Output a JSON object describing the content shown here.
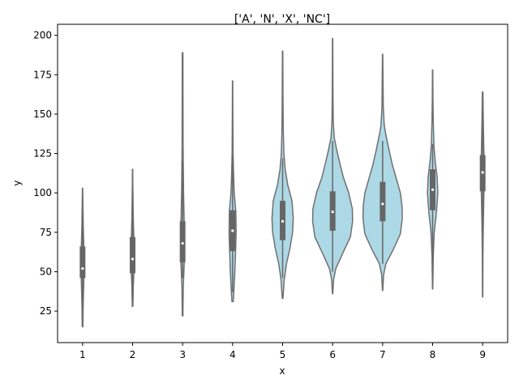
{
  "chart_data": {
    "type": "violin",
    "title": "['A', 'N', 'X', 'NC']",
    "xlabel": "x",
    "ylabel": "y",
    "categories": [
      "1",
      "2",
      "3",
      "4",
      "5",
      "6",
      "7",
      "8",
      "9"
    ],
    "ylim": [
      5,
      207
    ],
    "yticks": [
      25,
      50,
      75,
      100,
      125,
      150,
      175,
      200
    ],
    "colors": {
      "fill": "#add8e6",
      "line": "#707070",
      "box": "#666666",
      "median": "#ffffff",
      "axis": "#000000"
    },
    "violins": [
      {
        "x": "1",
        "min": 15,
        "max": 103,
        "q1": 46,
        "median": 52,
        "q3": 66,
        "whisker_low": 28,
        "whisker_high": 87,
        "profile": [
          [
            15,
            0.01
          ],
          [
            30,
            0.02
          ],
          [
            45,
            0.04
          ],
          [
            55,
            0.05
          ],
          [
            65,
            0.04
          ],
          [
            80,
            0.02
          ],
          [
            95,
            0.01
          ],
          [
            103,
            0.005
          ]
        ]
      },
      {
        "x": "2",
        "min": 28,
        "max": 115,
        "q1": 49,
        "median": 58,
        "q3": 72,
        "whisker_low": 34,
        "whisker_high": 101,
        "profile": [
          [
            28,
            0.01
          ],
          [
            40,
            0.02
          ],
          [
            50,
            0.04
          ],
          [
            60,
            0.05
          ],
          [
            70,
            0.04
          ],
          [
            85,
            0.02
          ],
          [
            100,
            0.01
          ],
          [
            115,
            0.005
          ]
        ]
      },
      {
        "x": "3",
        "min": 22,
        "max": 189,
        "q1": 56,
        "median": 68,
        "q3": 82,
        "whisker_low": 46,
        "whisker_high": 120,
        "profile": [
          [
            22,
            0.01
          ],
          [
            40,
            0.02
          ],
          [
            55,
            0.05
          ],
          [
            68,
            0.06
          ],
          [
            80,
            0.05
          ],
          [
            100,
            0.03
          ],
          [
            130,
            0.015
          ],
          [
            189,
            0.01
          ]
        ]
      },
      {
        "x": "4",
        "min": 31,
        "max": 171,
        "q1": 63,
        "median": 76,
        "q3": 89,
        "whisker_low": 37,
        "whisker_high": 123,
        "profile": [
          [
            31,
            0.02
          ],
          [
            38,
            0.04
          ],
          [
            50,
            0.07
          ],
          [
            62,
            0.09
          ],
          [
            75,
            0.11
          ],
          [
            88,
            0.1
          ],
          [
            100,
            0.05
          ],
          [
            112,
            0.03
          ],
          [
            125,
            0.015
          ],
          [
            150,
            0.008
          ],
          [
            171,
            0.005
          ]
        ]
      },
      {
        "x": "5",
        "min": 33,
        "max": 190,
        "q1": 70,
        "median": 82,
        "q3": 95,
        "whisker_low": 46,
        "whisker_high": 122,
        "profile": [
          [
            33,
            0.01
          ],
          [
            45,
            0.05
          ],
          [
            55,
            0.12
          ],
          [
            65,
            0.23
          ],
          [
            75,
            0.31
          ],
          [
            84,
            0.33
          ],
          [
            95,
            0.29
          ],
          [
            105,
            0.16
          ],
          [
            115,
            0.08
          ],
          [
            125,
            0.04
          ],
          [
            140,
            0.02
          ],
          [
            160,
            0.012
          ],
          [
            190,
            0.006
          ]
        ]
      },
      {
        "x": "6",
        "min": 36,
        "max": 198,
        "q1": 76,
        "median": 88,
        "q3": 101,
        "whisker_low": 50,
        "whisker_high": 133,
        "profile": [
          [
            36,
            0.005
          ],
          [
            45,
            0.03
          ],
          [
            52,
            0.1
          ],
          [
            62,
            0.32
          ],
          [
            72,
            0.55
          ],
          [
            82,
            0.62
          ],
          [
            90,
            0.61
          ],
          [
            100,
            0.5
          ],
          [
            110,
            0.33
          ],
          [
            120,
            0.21
          ],
          [
            128,
            0.12
          ],
          [
            135,
            0.05
          ],
          [
            145,
            0.02
          ],
          [
            165,
            0.01
          ],
          [
            198,
            0.005
          ]
        ]
      },
      {
        "x": "7",
        "min": 38,
        "max": 188,
        "q1": 82,
        "median": 93,
        "q3": 107,
        "whisker_low": 55,
        "whisker_high": 133,
        "profile": [
          [
            38,
            0.005
          ],
          [
            48,
            0.03
          ],
          [
            55,
            0.1
          ],
          [
            64,
            0.33
          ],
          [
            74,
            0.55
          ],
          [
            84,
            0.61
          ],
          [
            92,
            0.6
          ],
          [
            100,
            0.55
          ],
          [
            108,
            0.44
          ],
          [
            118,
            0.3
          ],
          [
            128,
            0.19
          ],
          [
            137,
            0.1
          ],
          [
            143,
            0.05
          ],
          [
            155,
            0.02
          ],
          [
            188,
            0.005
          ]
        ]
      },
      {
        "x": "8",
        "min": 39,
        "max": 178,
        "q1": 89,
        "median": 102,
        "q3": 115,
        "whisker_low": 57,
        "whisker_high": 131,
        "profile": [
          [
            39,
            0.005
          ],
          [
            60,
            0.02
          ],
          [
            75,
            0.05
          ],
          [
            88,
            0.12
          ],
          [
            100,
            0.16
          ],
          [
            110,
            0.14
          ],
          [
            120,
            0.08
          ],
          [
            130,
            0.04
          ],
          [
            145,
            0.02
          ],
          [
            160,
            0.01
          ],
          [
            178,
            0.005
          ]
        ]
      },
      {
        "x": "9",
        "min": 34,
        "max": 164,
        "q1": 101,
        "median": 113,
        "q3": 124,
        "whisker_low": 75,
        "whisker_high": 152,
        "profile": [
          [
            34,
            0.005
          ],
          [
            60,
            0.01
          ],
          [
            80,
            0.02
          ],
          [
            100,
            0.04
          ],
          [
            113,
            0.05
          ],
          [
            125,
            0.04
          ],
          [
            145,
            0.02
          ],
          [
            164,
            0.01
          ]
        ]
      }
    ]
  }
}
